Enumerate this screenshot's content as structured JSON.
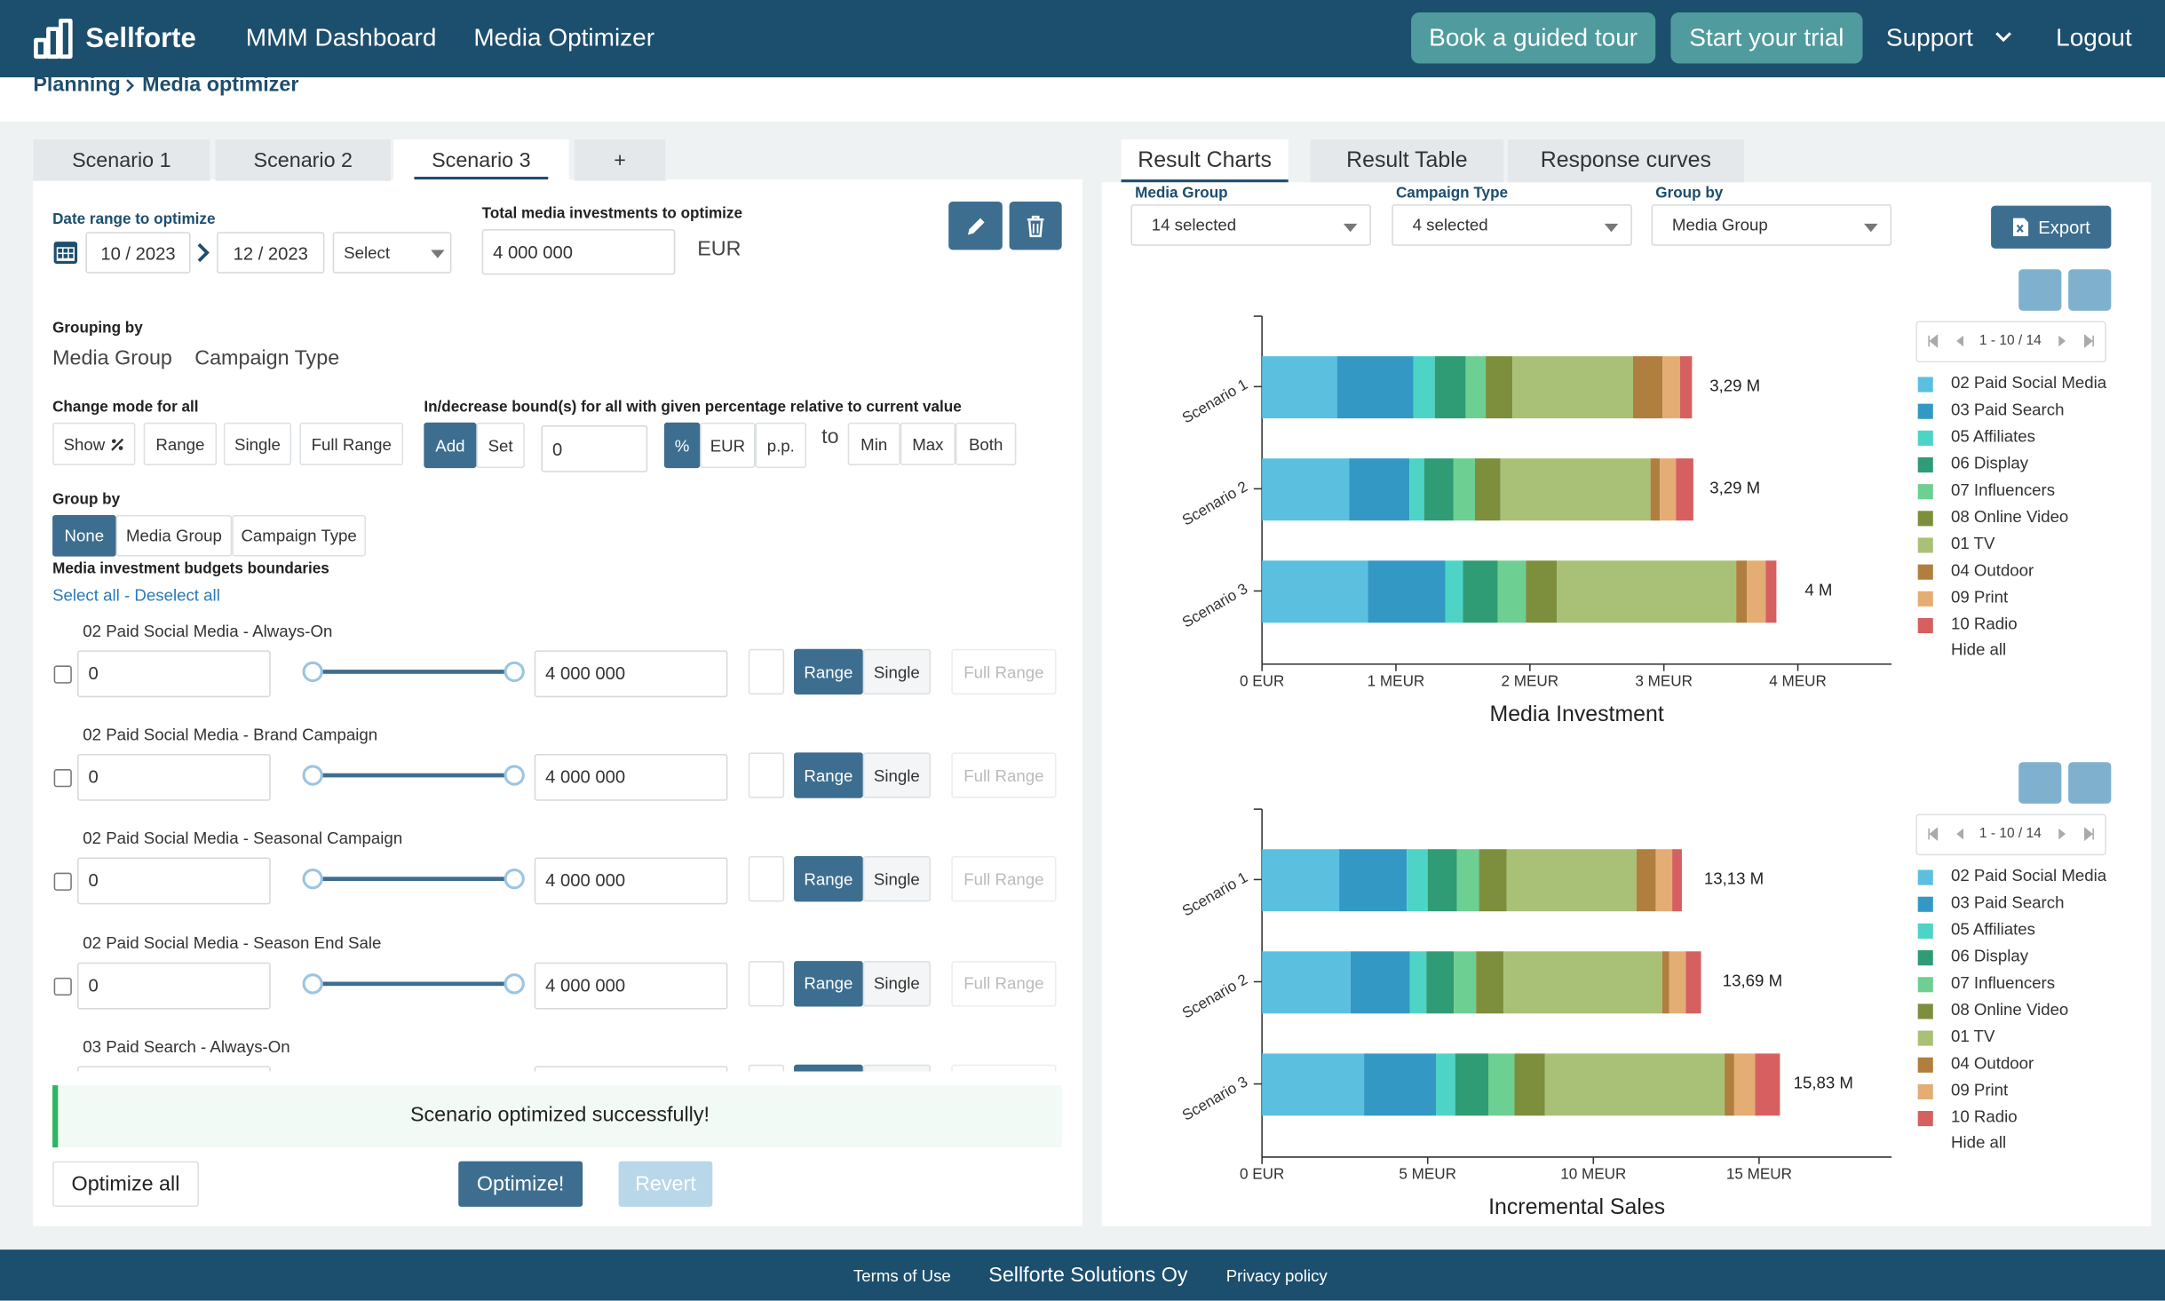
{
  "nav": {
    "brand": "Sellforte",
    "links": [
      "MMM Dashboard",
      "Media Optimizer"
    ],
    "buttons": [
      "Book a guided tour",
      "Start your trial"
    ],
    "support": "Support",
    "logout": "Logout"
  },
  "breadcrumb": [
    "Planning",
    "Media optimizer"
  ],
  "scenario_tabs": {
    "items": [
      "Scenario 1",
      "Scenario 2",
      "Scenario 3",
      "+"
    ],
    "active": 2
  },
  "form": {
    "date_label": "Date range to optimize",
    "start": "10 / 2023",
    "end": "12 / 2023",
    "period_select": "Select",
    "total_label": "Total media investments to optimize",
    "total_value": "4 000 000",
    "currency": "EUR"
  },
  "grouping": {
    "label": "Grouping by",
    "options": [
      "Media Group",
      "Campaign Type"
    ]
  },
  "change_mode": {
    "label": "Change mode for all",
    "buttons": [
      "Show",
      "Range",
      "Single",
      "Full Range"
    ]
  },
  "bounds": {
    "label": "In/decrease bound(s) for all with given percentage relative to current value",
    "ops": [
      "Add",
      "Set"
    ],
    "value": "0",
    "units": [
      "%",
      "EUR",
      "p.p."
    ],
    "to": "to",
    "targets": [
      "Min",
      "Max",
      "Both"
    ]
  },
  "group_by": {
    "label": "Group by",
    "options": [
      "None",
      "Media Group",
      "Campaign Type"
    ]
  },
  "boundaries": {
    "title": "Media investment budgets boundaries",
    "select_all": "Select all",
    "separator": " - ",
    "deselect_all": "Deselect all",
    "row_buttons": [
      "Range",
      "Single",
      "Full Range"
    ],
    "rows": [
      {
        "label": "02 Paid Social Media - Always-On",
        "min": "0",
        "max": "4 000 000"
      },
      {
        "label": "02 Paid Social Media - Brand Campaign",
        "min": "0",
        "max": "4 000 000"
      },
      {
        "label": "02 Paid Social Media - Seasonal Campaign",
        "min": "0",
        "max": "4 000 000"
      },
      {
        "label": "02 Paid Social Media - Season End Sale",
        "min": "0",
        "max": "4 000 000"
      },
      {
        "label": "03 Paid Search - Always-On"
      }
    ]
  },
  "status": {
    "message": "Scenario optimized successfully!",
    "buttons": [
      "Optimize all",
      "Optimize!",
      "Revert"
    ]
  },
  "results": {
    "tabs": [
      "Result Charts",
      "Result Table",
      "Response curves"
    ],
    "active": 0,
    "filters": [
      {
        "label": "Media Group",
        "value": "14 selected"
      },
      {
        "label": "Campaign Type",
        "value": "4 selected"
      },
      {
        "label": "Group by",
        "value": "Media Group"
      }
    ],
    "export": "Export",
    "pager": "1 - 10 / 14",
    "hide_all": "Hide all"
  },
  "chart_data": [
    {
      "type": "bar",
      "orientation": "horizontal",
      "stacked": true,
      "x_label": "Media Investment",
      "categories": [
        "Scenario 1",
        "Scenario 2",
        "Scenario 3"
      ],
      "series": [
        {
          "name": "02 Paid Social Media",
          "color": "#5bc0e0",
          "values": [
            0.56,
            0.65,
            0.79
          ]
        },
        {
          "name": "03 Paid Search",
          "color": "#3399c4",
          "values": [
            0.57,
            0.45,
            0.58
          ]
        },
        {
          "name": "05 Affiliates",
          "color": "#4dd4c6",
          "values": [
            0.16,
            0.11,
            0.13
          ]
        },
        {
          "name": "06 Display",
          "color": "#2f9c75",
          "values": [
            0.23,
            0.22,
            0.26
          ]
        },
        {
          "name": "07 Influencers",
          "color": "#6dcf92",
          "values": [
            0.15,
            0.16,
            0.21
          ]
        },
        {
          "name": "08 Online Video",
          "color": "#7d8f3c",
          "values": [
            0.2,
            0.19,
            0.23
          ]
        },
        {
          "name": "01 TV",
          "color": "#a9c177",
          "values": [
            0.9,
            1.12,
            1.34
          ]
        },
        {
          "name": "04 Outdoor",
          "color": "#b07e3e",
          "values": [
            0.22,
            0.07,
            0.08
          ]
        },
        {
          "name": "09 Print",
          "color": "#e3ad74",
          "values": [
            0.13,
            0.12,
            0.14
          ]
        },
        {
          "name": "10 Radio",
          "color": "#d5605f",
          "values": [
            0.09,
            0.13,
            0.08
          ]
        }
      ],
      "totals": {
        "values": [
          3.29,
          3.29,
          4
        ],
        "value_labels": [
          "3,29 M",
          "3,29 M",
          "4 M"
        ]
      },
      "xlim": [
        0,
        4.7
      ],
      "xticks": [
        {
          "value": 0,
          "label": "0 EUR"
        },
        {
          "value": 1,
          "label": "1 MEUR"
        },
        {
          "value": 2,
          "label": "2 MEUR"
        },
        {
          "value": 3,
          "label": "3 MEUR"
        },
        {
          "value": 4,
          "label": "4 MEUR"
        }
      ]
    },
    {
      "type": "bar",
      "orientation": "horizontal",
      "stacked": true,
      "x_label": "Incremental Sales",
      "categories": [
        "Scenario 1",
        "Scenario 2",
        "Scenario 3"
      ],
      "series": [
        {
          "name": "02 Paid Social Media",
          "color": "#5bc0e0",
          "values": [
            2.33,
            2.67,
            3.08
          ]
        },
        {
          "name": "03 Paid Search",
          "color": "#3399c4",
          "values": [
            2.04,
            1.79,
            2.17
          ]
        },
        {
          "name": "05 Affiliates",
          "color": "#4dd4c6",
          "values": [
            0.63,
            0.5,
            0.58
          ]
        },
        {
          "name": "06 Display",
          "color": "#2f9c75",
          "values": [
            0.88,
            0.83,
            1.0
          ]
        },
        {
          "name": "07 Influencers",
          "color": "#6dcf92",
          "values": [
            0.67,
            0.67,
            0.79
          ]
        },
        {
          "name": "08 Online Video",
          "color": "#7d8f3c",
          "values": [
            0.83,
            0.83,
            0.92
          ]
        },
        {
          "name": "01 TV",
          "color": "#a9c177",
          "values": [
            3.92,
            4.79,
            5.42
          ]
        },
        {
          "name": "04 Outdoor",
          "color": "#b07e3e",
          "values": [
            0.58,
            0.21,
            0.29
          ]
        },
        {
          "name": "09 Print",
          "color": "#e3ad74",
          "values": [
            0.5,
            0.5,
            0.63
          ]
        },
        {
          "name": "10 Radio",
          "color": "#d5605f",
          "values": [
            0.29,
            0.46,
            0.75
          ]
        }
      ],
      "totals": {
        "values": [
          13.13,
          13.69,
          15.83
        ],
        "value_labels": [
          "13,13 M",
          "13,69 M",
          "15,83 M"
        ]
      },
      "xlim": [
        0,
        19
      ],
      "xticks": [
        {
          "value": 0,
          "label": "0 EUR"
        },
        {
          "value": 5,
          "label": "5 MEUR"
        },
        {
          "value": 10,
          "label": "10 MEUR"
        },
        {
          "value": 15,
          "label": "15 MEUR"
        }
      ]
    }
  ],
  "footer": [
    "Terms of Use",
    "Sellforte Solutions Oy",
    "Privacy policy"
  ]
}
